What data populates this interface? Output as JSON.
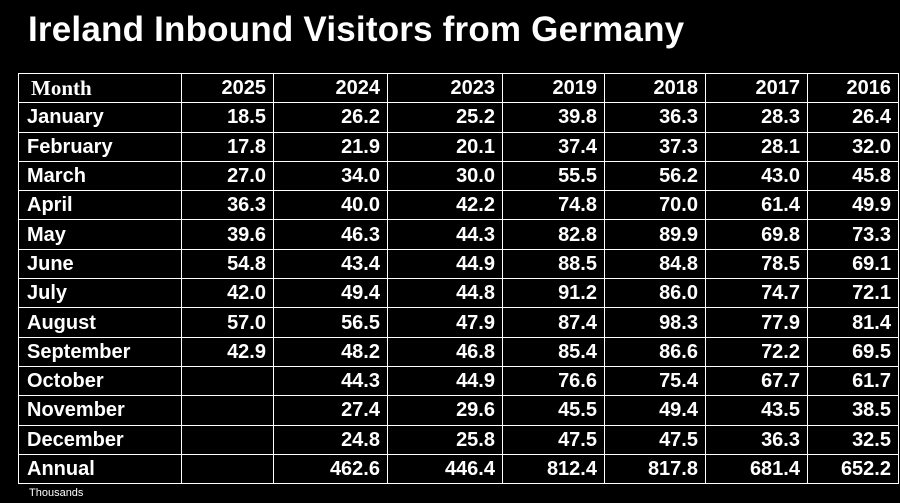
{
  "chart_data": {
    "type": "table",
    "title": "Ireland Inbound Visitors from Germany",
    "units_note": "Thousands",
    "columns": [
      "Month",
      "2025",
      "2024",
      "2023",
      "2019",
      "2018",
      "2017",
      "2016"
    ],
    "rows": [
      [
        "January",
        "18.5",
        "26.2",
        "25.2",
        "39.8",
        "36.3",
        "28.3",
        "26.4"
      ],
      [
        "February",
        "17.8",
        "21.9",
        "20.1",
        "37.4",
        "37.3",
        "28.1",
        "32.0"
      ],
      [
        "March",
        "27.0",
        "34.0",
        "30.0",
        "55.5",
        "56.2",
        "43.0",
        "45.8"
      ],
      [
        "April",
        "36.3",
        "40.0",
        "42.2",
        "74.8",
        "70.0",
        "61.4",
        "49.9"
      ],
      [
        "May",
        "39.6",
        "46.3",
        "44.3",
        "82.8",
        "89.9",
        "69.8",
        "73.3"
      ],
      [
        "June",
        "54.8",
        "43.4",
        "44.9",
        "88.5",
        "84.8",
        "78.5",
        "69.1"
      ],
      [
        "July",
        "42.0",
        "49.4",
        "44.8",
        "91.2",
        "86.0",
        "74.7",
        "72.1"
      ],
      [
        "August",
        "57.0",
        "56.5",
        "47.9",
        "87.4",
        "98.3",
        "77.9",
        "81.4"
      ],
      [
        "September",
        "42.9",
        "48.2",
        "46.8",
        "85.4",
        "86.6",
        "72.2",
        "69.5"
      ],
      [
        "October",
        "",
        "44.3",
        "44.9",
        "76.6",
        "75.4",
        "67.7",
        "61.7"
      ],
      [
        "November",
        "",
        "27.4",
        "29.6",
        "45.5",
        "49.4",
        "43.5",
        "38.5"
      ],
      [
        "December",
        "",
        "24.8",
        "25.8",
        "47.5",
        "47.5",
        "36.3",
        "32.5"
      ],
      [
        "Annual",
        "",
        "462.6",
        "446.4",
        "812.4",
        "817.8",
        "681.4",
        "652.2"
      ]
    ],
    "colors": {
      "background": "#000000",
      "text": "#ffffff",
      "grid": "#ffffff"
    }
  }
}
